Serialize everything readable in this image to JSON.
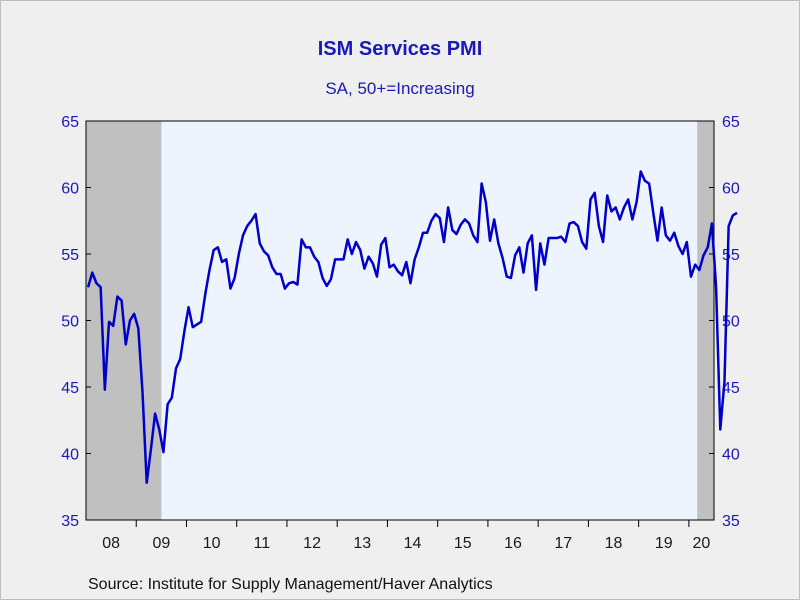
{
  "chart_data": {
    "type": "line",
    "title": "ISM Services PMI",
    "subtitle": "SA, 50+=Increasing",
    "source": "Source:  Institute for Supply Management/Haver Analytics",
    "ylim": [
      35,
      65
    ],
    "yticks": [
      35,
      40,
      45,
      50,
      55,
      60,
      65
    ],
    "y_axis_both_sides": true,
    "x_tick_labels": [
      "08",
      "09",
      "10",
      "11",
      "12",
      "13",
      "14",
      "15",
      "16",
      "17",
      "18",
      "19",
      "20"
    ],
    "x_start": "2008-01",
    "x_end": "2020-06",
    "recessions": [
      {
        "start": "2008-01",
        "end": "2009-06"
      },
      {
        "start": "2020-03",
        "end": "2020-06"
      }
    ],
    "colors": {
      "line": "#0000c8",
      "recession": "#c0c0c0",
      "plot_bg": "#eef4fd",
      "text": "#1a1ab8"
    },
    "series": [
      {
        "values": [
          52.5,
          53.6,
          52.8,
          52.5,
          44.8,
          49.9,
          49.6,
          51.8,
          51.5,
          48.2,
          50.0,
          50.5,
          49.4,
          44.6,
          37.8,
          40.3,
          43.0,
          41.8,
          40.1,
          43.7,
          44.2,
          46.4,
          47.1,
          49.2,
          51.0,
          49.5,
          49.7,
          49.9,
          52.0,
          53.8,
          55.3,
          55.5,
          54.4,
          54.6,
          52.4,
          53.2,
          55.0,
          56.4,
          57.1,
          57.5,
          58.0,
          55.8,
          55.2,
          54.9,
          54.0,
          53.5,
          53.5,
          52.4,
          52.8,
          52.9,
          52.7,
          56.1,
          55.5,
          55.5,
          54.8,
          54.4,
          53.2,
          52.6,
          53.1,
          54.6,
          54.6,
          54.6,
          56.1,
          55.0,
          55.9,
          55.3,
          53.9,
          54.8,
          54.3,
          53.3,
          55.7,
          56.2,
          54.0,
          54.2,
          53.7,
          53.4,
          54.4,
          52.8,
          54.6,
          55.5,
          56.6,
          56.6,
          57.5,
          58.0,
          57.7,
          55.9,
          58.5,
          56.8,
          56.5,
          57.2,
          57.6,
          57.3,
          56.4,
          55.9,
          60.3,
          58.9,
          56.0,
          57.6,
          55.8,
          54.7,
          53.3,
          53.2,
          54.9,
          55.5,
          53.6,
          55.8,
          56.4,
          52.3,
          55.8,
          54.2,
          56.2,
          56.2,
          56.2,
          56.3,
          55.9,
          57.3,
          57.4,
          57.1,
          55.9,
          55.4,
          59.1,
          59.6,
          57.1,
          55.9,
          59.4,
          58.2,
          58.5,
          57.6,
          58.5,
          59.1,
          57.6,
          58.9,
          61.2,
          60.5,
          60.3,
          58.1,
          56.0,
          58.5,
          56.4,
          56.0,
          56.6,
          55.6,
          55.0,
          55.9,
          53.3,
          54.2,
          53.8,
          54.9,
          55.5,
          57.3,
          52.5,
          41.8,
          45.4,
          57.1,
          57.9,
          58.1
        ]
      }
    ]
  }
}
